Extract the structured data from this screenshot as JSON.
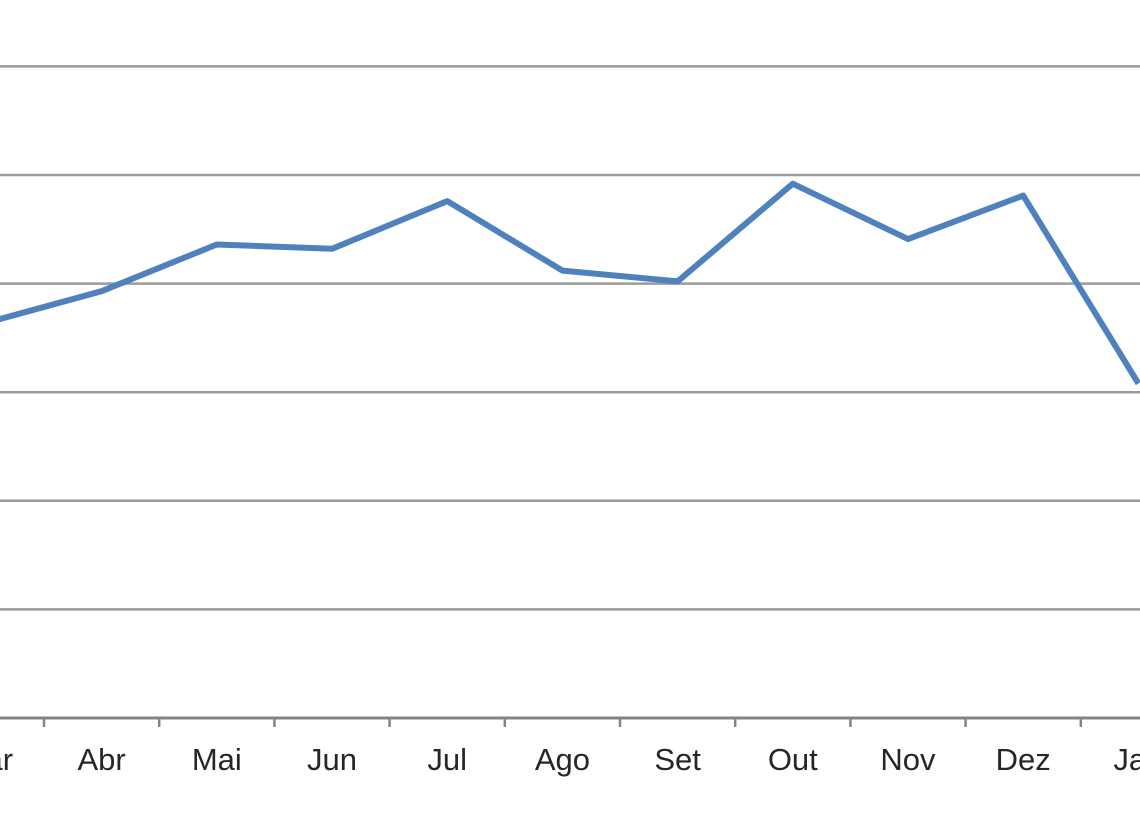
{
  "chart_data": {
    "type": "line",
    "title": "",
    "xlabel": "",
    "ylabel": "",
    "categories": [
      "Mar",
      "Abr",
      "Mai",
      "Jun",
      "Jul",
      "Ago",
      "Set",
      "Out",
      "Nov",
      "Dez",
      "Jan"
    ],
    "visible_category_labels": [
      "r",
      "Abr",
      "Mai",
      "Jun",
      "Jul",
      "Ago",
      "Set",
      "Out",
      "Nov",
      "Dez",
      "Ja"
    ],
    "series": [
      {
        "name": "",
        "values": [
          3.64,
          3.93,
          4.36,
          4.32,
          4.76,
          4.12,
          4.02,
          4.92,
          4.41,
          4.81,
          3.08
        ]
      }
    ],
    "value_note": "Chart is cropped: no y-axis or value labels visible. Values are in gridline units where the x-axis baseline = 0 and each horizontal gridline step = 1 unit.",
    "ylim": [
      0,
      6
    ],
    "grid": true,
    "gridline_count": 6,
    "legend": "none",
    "crop_note": "First category label (Mar) and last category label (Jan) are clipped by the image edges, showing only 'r' and 'Ja'.",
    "colors": {
      "line": "#4F81BD",
      "gridline": "#9B9B9B",
      "axis": "#848484",
      "tick": "#848484",
      "label": "#262626",
      "background": "#FFFFFF"
    }
  }
}
